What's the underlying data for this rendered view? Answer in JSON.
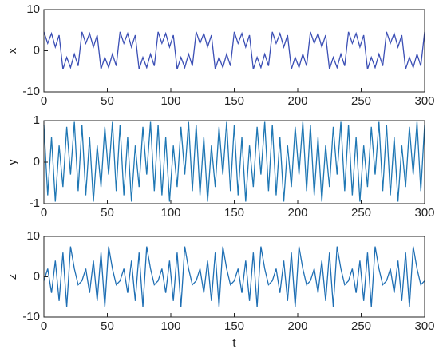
{
  "chart_data": [
    {
      "type": "line",
      "ylabel": "x",
      "color": "#3b4fb5",
      "x": [
        0,
        3,
        6,
        9,
        12,
        15,
        18,
        21,
        24,
        27,
        30,
        33,
        36,
        39,
        42,
        45,
        48,
        51,
        54,
        57,
        60,
        63,
        66,
        69,
        72,
        75,
        78,
        81,
        84,
        87,
        90,
        93,
        96,
        99,
        102,
        105,
        108,
        111,
        114,
        117,
        120,
        123,
        126,
        129,
        132,
        135,
        138,
        141,
        144,
        147,
        150,
        153,
        156,
        159,
        162,
        165,
        168,
        171,
        174,
        177,
        180,
        183,
        186,
        189,
        192,
        195,
        198,
        201,
        204,
        207,
        210,
        213,
        216,
        219,
        222,
        225,
        228,
        231,
        234,
        237,
        240,
        243,
        246,
        249,
        252,
        255,
        258,
        261,
        264,
        267,
        270,
        273,
        276,
        279,
        282,
        285,
        288,
        291,
        294,
        297,
        300
      ],
      "values": [
        4.6,
        1.8,
        4.2,
        0.9,
        3.8,
        -4.5,
        -1.6,
        -4.1,
        -0.8,
        -3.7,
        4.6,
        1.8,
        4.2,
        0.9,
        3.8,
        -4.5,
        -1.6,
        -4.1,
        -0.8,
        -3.7,
        4.6,
        1.8,
        4.2,
        0.9,
        3.8,
        -4.5,
        -1.6,
        -4.1,
        -0.8,
        -3.7,
        4.6,
        1.8,
        4.2,
        0.9,
        3.8,
        -4.5,
        -1.6,
        -4.1,
        -0.8,
        -3.7,
        4.6,
        1.8,
        4.2,
        0.9,
        3.8,
        -4.5,
        -1.6,
        -4.1,
        -0.8,
        -3.7,
        4.6,
        1.8,
        4.2,
        0.9,
        3.8,
        -4.5,
        -1.6,
        -4.1,
        -0.8,
        -3.7,
        4.6,
        1.8,
        4.2,
        0.9,
        3.8,
        -4.5,
        -1.6,
        -4.1,
        -0.8,
        -3.7,
        4.6,
        1.8,
        4.2,
        0.9,
        3.8,
        -4.5,
        -1.6,
        -4.1,
        -0.8,
        -3.7,
        4.6,
        1.8,
        4.2,
        0.9,
        3.8,
        -4.5,
        -1.6,
        -4.1,
        -0.8,
        -3.7,
        4.6,
        1.8,
        4.2,
        0.9,
        3.8,
        -4.5,
        -1.6,
        -4.1,
        -0.8,
        -3.7,
        4.6
      ],
      "xlim": [
        0,
        300
      ],
      "xticks": [
        0,
        50,
        100,
        150,
        200,
        250,
        300
      ],
      "ylim": [
        -10,
        10
      ],
      "yticks": [
        -10,
        0,
        10
      ]
    },
    {
      "type": "line",
      "ylabel": "y",
      "color": "#1f77b4",
      "x": [
        0,
        3,
        6,
        9,
        12,
        15,
        18,
        21,
        24,
        27,
        30,
        33,
        36,
        39,
        42,
        45,
        48,
        51,
        54,
        57,
        60,
        63,
        66,
        69,
        72,
        75,
        78,
        81,
        84,
        87,
        90,
        93,
        96,
        99,
        102,
        105,
        108,
        111,
        114,
        117,
        120,
        123,
        126,
        129,
        132,
        135,
        138,
        141,
        144,
        147,
        150,
        153,
        156,
        159,
        162,
        165,
        168,
        171,
        174,
        177,
        180,
        183,
        186,
        189,
        192,
        195,
        198,
        201,
        204,
        207,
        210,
        213,
        216,
        219,
        222,
        225,
        228,
        231,
        234,
        237,
        240,
        243,
        246,
        249,
        252,
        255,
        258,
        261,
        264,
        267,
        270,
        273,
        276,
        279,
        282,
        285,
        288,
        291,
        294,
        297,
        300
      ],
      "values": [
        0.9,
        -0.8,
        0.6,
        -0.95,
        0.4,
        -0.6,
        0.85,
        -0.3,
        0.97,
        -0.7,
        0.9,
        -0.8,
        0.6,
        -0.95,
        0.4,
        -0.6,
        0.85,
        -0.3,
        0.97,
        -0.7,
        0.9,
        -0.8,
        0.6,
        -0.95,
        0.4,
        -0.6,
        0.85,
        -0.3,
        0.97,
        -0.7,
        0.9,
        -0.8,
        0.6,
        -0.95,
        0.4,
        -0.6,
        0.85,
        -0.3,
        0.97,
        -0.7,
        0.9,
        -0.8,
        0.6,
        -0.95,
        0.4,
        -0.6,
        0.85,
        -0.3,
        0.97,
        -0.7,
        0.9,
        -0.8,
        0.6,
        -0.95,
        0.4,
        -0.6,
        0.85,
        -0.3,
        0.97,
        -0.7,
        0.9,
        -0.8,
        0.6,
        -0.95,
        0.4,
        -0.6,
        0.85,
        -0.3,
        0.97,
        -0.7,
        0.9,
        -0.8,
        0.6,
        -0.95,
        0.4,
        -0.6,
        0.85,
        -0.3,
        0.97,
        -0.7,
        0.9,
        -0.8,
        0.6,
        -0.95,
        0.4,
        -0.6,
        0.85,
        -0.3,
        0.97,
        -0.7,
        0.9,
        -0.8,
        0.6,
        -0.95,
        0.4,
        -0.6,
        0.85,
        -0.3,
        0.97,
        -0.7,
        0.9
      ],
      "xlim": [
        0,
        300
      ],
      "xticks": [
        0,
        50,
        100,
        150,
        200,
        250,
        300
      ],
      "ylim": [
        -1,
        1
      ],
      "yticks": [
        -1,
        0,
        1
      ]
    },
    {
      "type": "line",
      "ylabel": "z",
      "xlabel": "t",
      "color": "#1f6fb4",
      "x": [
        0,
        3,
        6,
        9,
        12,
        15,
        18,
        21,
        24,
        27,
        30,
        33,
        36,
        39,
        42,
        45,
        48,
        51,
        54,
        57,
        60,
        63,
        66,
        69,
        72,
        75,
        78,
        81,
        84,
        87,
        90,
        93,
        96,
        99,
        102,
        105,
        108,
        111,
        114,
        117,
        120,
        123,
        126,
        129,
        132,
        135,
        138,
        141,
        144,
        147,
        150,
        153,
        156,
        159,
        162,
        165,
        168,
        171,
        174,
        177,
        180,
        183,
        186,
        189,
        192,
        195,
        198,
        201,
        204,
        207,
        210,
        213,
        216,
        219,
        222,
        225,
        228,
        231,
        234,
        237,
        240,
        243,
        246,
        249,
        252,
        255,
        258,
        261,
        264,
        267,
        270,
        273,
        276,
        279,
        282,
        285,
        288,
        291,
        294,
        297,
        300
      ],
      "values": [
        -1,
        2,
        -4,
        4,
        -6,
        6,
        -7.5,
        7.5,
        2,
        -2,
        -1,
        2,
        -4,
        4,
        -6,
        6,
        -7.5,
        7.5,
        2,
        -2,
        -1,
        2,
        -4,
        4,
        -6,
        6,
        -7.5,
        7.5,
        2,
        -2,
        -1,
        2,
        -4,
        4,
        -6,
        6,
        -7.5,
        7.5,
        2,
        -2,
        -1,
        2,
        -4,
        4,
        -6,
        6,
        -7.5,
        7.5,
        2,
        -2,
        -1,
        2,
        -4,
        4,
        -6,
        6,
        -7.5,
        7.5,
        2,
        -2,
        -1,
        2,
        -4,
        4,
        -6,
        6,
        -7.5,
        7.5,
        2,
        -2,
        -1,
        2,
        -4,
        4,
        -6,
        6,
        -7.5,
        7.5,
        2,
        -2,
        -1,
        2,
        -4,
        4,
        -6,
        6,
        -7.5,
        7.5,
        2,
        -2,
        -1,
        2,
        -4,
        4,
        -6,
        6,
        -7.5,
        7.5,
        2,
        -2,
        -1
      ],
      "xlim": [
        0,
        300
      ],
      "xticks": [
        0,
        50,
        100,
        150,
        200,
        250,
        300
      ],
      "ylim": [
        -10,
        10
      ],
      "yticks": [
        -10,
        0,
        10
      ]
    }
  ]
}
